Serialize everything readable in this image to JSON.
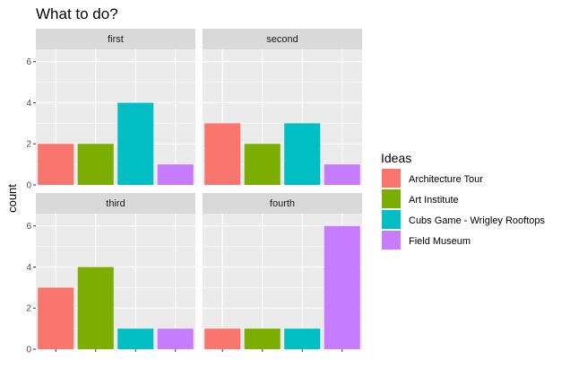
{
  "chart_data": {
    "type": "bar",
    "title": "What to do?",
    "xlabel": "",
    "ylabel": "count",
    "ylim": [
      0,
      6.6
    ],
    "yticks": [
      0,
      2,
      4,
      6
    ],
    "grid": true,
    "categories": [
      "Architecture Tour",
      "Art Institute",
      "Cubs Game - Wrigley Rooftops",
      "Field Museum"
    ],
    "colors": [
      "#F8766D",
      "#7CAE00",
      "#00BFC4",
      "#C77CFF"
    ],
    "legend": {
      "title": "Ideas",
      "position": "right",
      "items": [
        "Architecture Tour",
        "Art Institute",
        "Cubs Game - Wrigley Rooftops",
        "Field Museum"
      ]
    },
    "facets": [
      {
        "label": "first",
        "values": [
          2,
          2,
          4,
          1
        ]
      },
      {
        "label": "second",
        "values": [
          3,
          2,
          3,
          1
        ]
      },
      {
        "label": "third",
        "values": [
          3,
          4,
          1,
          1
        ]
      },
      {
        "label": "fourth",
        "values": [
          1,
          1,
          1,
          6
        ]
      }
    ]
  }
}
